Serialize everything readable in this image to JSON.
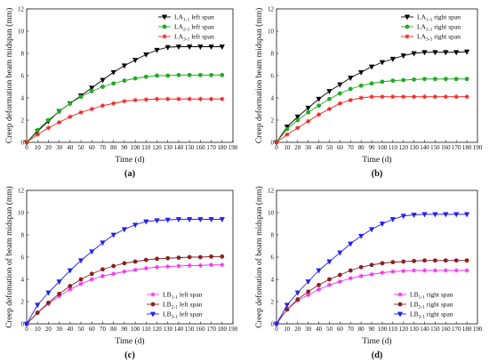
{
  "chart_data": [
    {
      "type": "line",
      "panel_label": "(a)",
      "xlabel": "Time (d)",
      "ylabel": "Creep deformation beam midspan (mm)",
      "xlim": [
        0,
        190
      ],
      "ylim": [
        0,
        12
      ],
      "xticks": [
        0,
        10,
        20,
        30,
        40,
        50,
        60,
        70,
        80,
        90,
        100,
        110,
        120,
        130,
        140,
        150,
        160,
        170,
        180,
        190
      ],
      "yticks": [
        0,
        2,
        4,
        6,
        8,
        10,
        12
      ],
      "legend_position": "top-right",
      "x": [
        0,
        10,
        20,
        30,
        40,
        50,
        60,
        70,
        80,
        90,
        100,
        110,
        120,
        130,
        140,
        150,
        160,
        170,
        180
      ],
      "series": [
        {
          "label_main": "LA",
          "label_sub": "1-1",
          "label_suffix": "left span",
          "color": "#000000",
          "marker": "triangle-down",
          "values": [
            0,
            1.0,
            1.9,
            2.8,
            3.5,
            4.2,
            4.9,
            5.6,
            6.3,
            6.9,
            7.4,
            7.9,
            8.3,
            8.55,
            8.6,
            8.6,
            8.6,
            8.6,
            8.6
          ]
        },
        {
          "label_main": "LA",
          "label_sub": "2-1",
          "label_suffix": "left span",
          "color": "#22aa22",
          "marker": "circle",
          "values": [
            0,
            1.1,
            2.0,
            2.8,
            3.5,
            4.1,
            4.6,
            5.0,
            5.3,
            5.55,
            5.75,
            5.9,
            6.0,
            6.0,
            6.05,
            6.05,
            6.05,
            6.05,
            6.05
          ]
        },
        {
          "label_main": "LA",
          "label_sub": "3-1",
          "label_suffix": "left span",
          "color": "#ee2222",
          "marker": "star",
          "values": [
            0,
            0.7,
            1.3,
            1.8,
            2.3,
            2.7,
            3.0,
            3.3,
            3.5,
            3.7,
            3.8,
            3.85,
            3.9,
            3.9,
            3.9,
            3.9,
            3.9,
            3.9,
            3.9
          ]
        }
      ]
    },
    {
      "type": "line",
      "panel_label": "(b)",
      "xlabel": "Time (d)",
      "ylabel": "Creep deformation beam midspan (mm)",
      "xlim": [
        0,
        190
      ],
      "ylim": [
        0,
        12
      ],
      "xticks": [
        0,
        10,
        20,
        30,
        40,
        50,
        60,
        70,
        80,
        90,
        100,
        110,
        120,
        130,
        140,
        150,
        160,
        170,
        180,
        190
      ],
      "yticks": [
        0,
        2,
        4,
        6,
        8,
        10,
        12
      ],
      "legend_position": "top-right",
      "x": [
        0,
        10,
        20,
        30,
        40,
        50,
        60,
        70,
        80,
        90,
        100,
        110,
        120,
        130,
        140,
        150,
        160,
        170,
        180
      ],
      "series": [
        {
          "label_main": "LA",
          "label_sub": "1-1",
          "label_suffix": "right span",
          "color": "#000000",
          "marker": "triangle-down",
          "values": [
            0,
            1.4,
            2.3,
            3.1,
            3.9,
            4.6,
            5.2,
            5.8,
            6.3,
            6.8,
            7.2,
            7.5,
            7.8,
            8.0,
            8.1,
            8.1,
            8.1,
            8.1,
            8.15
          ]
        },
        {
          "label_main": "LA",
          "label_sub": "2-1",
          "label_suffix": "right span",
          "color": "#22aa22",
          "marker": "circle",
          "values": [
            0,
            1.2,
            2.0,
            2.7,
            3.3,
            3.9,
            4.4,
            4.8,
            5.1,
            5.3,
            5.45,
            5.55,
            5.6,
            5.65,
            5.7,
            5.7,
            5.7,
            5.7,
            5.7
          ]
        },
        {
          "label_main": "LA",
          "label_sub": "3-1",
          "label_suffix": "right span",
          "color": "#ee2222",
          "marker": "star",
          "values": [
            0,
            0.7,
            1.3,
            1.9,
            2.5,
            3.0,
            3.5,
            3.8,
            4.0,
            4.1,
            4.1,
            4.1,
            4.1,
            4.1,
            4.1,
            4.1,
            4.1,
            4.1,
            4.1
          ]
        }
      ]
    },
    {
      "type": "line",
      "panel_label": "(c)",
      "xlabel": "Time (d)",
      "ylabel": "Creep defomation of beam midspan (mm)",
      "xlim": [
        0,
        190
      ],
      "ylim": [
        0,
        12
      ],
      "xticks": [
        0,
        10,
        20,
        30,
        40,
        50,
        60,
        70,
        80,
        90,
        100,
        110,
        120,
        130,
        140,
        150,
        160,
        170,
        180,
        190
      ],
      "yticks": [
        0,
        2,
        4,
        6,
        8,
        10,
        12
      ],
      "legend_position": "bottom-right",
      "x": [
        0,
        10,
        20,
        30,
        40,
        50,
        60,
        70,
        80,
        90,
        100,
        110,
        120,
        130,
        140,
        150,
        160,
        170,
        180
      ],
      "series": [
        {
          "label_main": "LB",
          "label_sub": "1-1",
          "label_suffix": "left span",
          "color": "#ee33ee",
          "marker": "star",
          "values": [
            0,
            1.0,
            1.8,
            2.5,
            3.1,
            3.6,
            4.0,
            4.3,
            4.5,
            4.7,
            4.85,
            5.0,
            5.1,
            5.15,
            5.2,
            5.25,
            5.25,
            5.3,
            5.3
          ]
        },
        {
          "label_main": "LB",
          "label_sub": "2-1",
          "label_suffix": "left span",
          "color": "#882222",
          "marker": "circle",
          "values": [
            0,
            1.0,
            1.9,
            2.7,
            3.4,
            4.0,
            4.5,
            4.9,
            5.2,
            5.45,
            5.6,
            5.75,
            5.85,
            5.9,
            5.95,
            6.0,
            6.0,
            6.05,
            6.05
          ]
        },
        {
          "label_main": "LB",
          "label_sub": "3-1",
          "label_suffix": "left span",
          "color": "#2222ee",
          "marker": "triangle-down",
          "values": [
            0,
            1.7,
            2.8,
            3.8,
            4.8,
            5.7,
            6.5,
            7.3,
            8.0,
            8.5,
            8.9,
            9.2,
            9.3,
            9.35,
            9.4,
            9.4,
            9.4,
            9.4,
            9.4
          ]
        }
      ]
    },
    {
      "type": "line",
      "panel_label": "(d)",
      "xlabel": "Time (d)",
      "ylabel": "Creep defomation of beam midspan (mm)",
      "xlim": [
        0,
        190
      ],
      "ylim": [
        0,
        12
      ],
      "xticks": [
        0,
        10,
        20,
        30,
        40,
        50,
        60,
        70,
        80,
        90,
        100,
        110,
        120,
        130,
        140,
        150,
        160,
        170,
        180,
        190
      ],
      "yticks": [
        0,
        2,
        4,
        6,
        8,
        10,
        12
      ],
      "legend_position": "bottom-right",
      "x": [
        0,
        10,
        20,
        30,
        40,
        50,
        60,
        70,
        80,
        90,
        100,
        110,
        120,
        130,
        140,
        150,
        160,
        170,
        180
      ],
      "series": [
        {
          "label_main": "LB",
          "label_sub": "1-1",
          "label_suffix": "right span",
          "color": "#ee33ee",
          "marker": "star",
          "values": [
            0,
            1.3,
            2.1,
            2.6,
            3.1,
            3.5,
            3.8,
            4.1,
            4.3,
            4.45,
            4.6,
            4.7,
            4.75,
            4.8,
            4.8,
            4.8,
            4.8,
            4.8,
            4.8
          ]
        },
        {
          "label_main": "LB",
          "label_sub": "2-1",
          "label_suffix": "right span",
          "color": "#882222",
          "marker": "circle",
          "values": [
            0,
            1.3,
            2.2,
            2.9,
            3.5,
            4.0,
            4.4,
            4.8,
            5.1,
            5.3,
            5.45,
            5.55,
            5.6,
            5.65,
            5.7,
            5.7,
            5.7,
            5.7,
            5.7
          ]
        },
        {
          "label_main": "LB",
          "label_sub": "3-1",
          "label_suffix": "right span",
          "color": "#2222ee",
          "marker": "triangle-down",
          "values": [
            0,
            1.7,
            2.8,
            3.8,
            4.8,
            5.6,
            6.4,
            7.2,
            7.9,
            8.5,
            9.0,
            9.4,
            9.7,
            9.8,
            9.85,
            9.85,
            9.85,
            9.85,
            9.85
          ]
        }
      ]
    }
  ]
}
